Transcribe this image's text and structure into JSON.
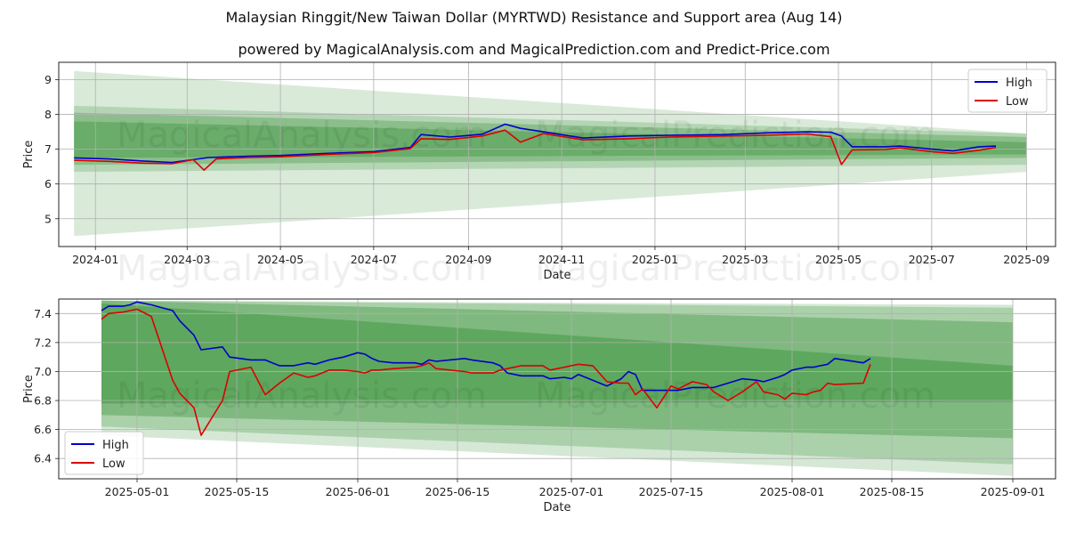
{
  "title": "Malaysian Ringgit/New Taiwan Dollar (MYRTWD) Resistance and Support area (Aug 14)",
  "subtitle": "powered by MagicalAnalysis.com and MagicalPrediction.com and Predict-Price.com",
  "watermarks": [
    "MagicalAnalysis.com",
    "MagicalPrediction.com"
  ],
  "colors": {
    "high": "#0000cc",
    "low": "#dd0000",
    "band": "#2e8b2e"
  },
  "chart_data": [
    {
      "type": "line",
      "xlabel": "Date",
      "ylabel": "Price",
      "xlim": [
        "2023-12-08",
        "2025-09-20"
      ],
      "ylim": [
        4.2,
        9.5
      ],
      "x_ticks": [
        "2024-01",
        "2024-03",
        "2024-05",
        "2024-07",
        "2024-09",
        "2024-11",
        "2025-01",
        "2025-03",
        "2025-05",
        "2025-07",
        "2025-09"
      ],
      "x_tick_dates": [
        "2024-01-01",
        "2024-03-01",
        "2024-05-01",
        "2024-07-01",
        "2024-09-01",
        "2024-11-01",
        "2025-01-01",
        "2025-03-01",
        "2025-05-01",
        "2025-07-01",
        "2025-09-01"
      ],
      "y_ticks": [
        5,
        6,
        7,
        8,
        9
      ],
      "grid": true,
      "legend": "top-right",
      "bands_x": [
        "2023-12-18",
        "2025-09-01"
      ],
      "bands": [
        {
          "upper": [
            9.25,
            7.45
          ],
          "lower": [
            4.5,
            6.35
          ],
          "opacity": 0.18
        },
        {
          "upper": [
            8.25,
            7.45
          ],
          "lower": [
            6.35,
            6.55
          ],
          "opacity": 0.22
        },
        {
          "upper": [
            8.05,
            7.35
          ],
          "lower": [
            6.55,
            6.75
          ],
          "opacity": 0.3
        },
        {
          "upper": [
            7.8,
            7.2
          ],
          "lower": [
            6.75,
            6.85
          ],
          "opacity": 0.35
        }
      ],
      "series": [
        {
          "name": "High",
          "dates": [
            "2023-12-18",
            "2024-01-10",
            "2024-02-01",
            "2024-02-20",
            "2024-03-15",
            "2024-04-10",
            "2024-05-01",
            "2024-06-01",
            "2024-07-01",
            "2024-07-25",
            "2024-08-01",
            "2024-08-20",
            "2024-09-10",
            "2024-09-25",
            "2024-10-05",
            "2024-10-20",
            "2024-11-15",
            "2024-12-15",
            "2025-01-10",
            "2025-02-15",
            "2025-03-15",
            "2025-04-10",
            "2025-04-26",
            "2025-05-03",
            "2025-05-10",
            "2025-06-01",
            "2025-06-10",
            "2025-07-01",
            "2025-07-15",
            "2025-08-01",
            "2025-08-12"
          ],
          "values": [
            6.75,
            6.72,
            6.66,
            6.62,
            6.76,
            6.8,
            6.82,
            6.88,
            6.93,
            7.05,
            7.42,
            7.35,
            7.43,
            7.72,
            7.6,
            7.5,
            7.32,
            7.38,
            7.4,
            7.42,
            7.47,
            7.5,
            7.49,
            7.38,
            7.07,
            7.07,
            7.09,
            7.0,
            6.95,
            7.07,
            7.09
          ]
        },
        {
          "name": "Low",
          "dates": [
            "2023-12-18",
            "2024-01-10",
            "2024-02-01",
            "2024-02-20",
            "2024-03-05",
            "2024-03-12",
            "2024-03-20",
            "2024-04-10",
            "2024-05-01",
            "2024-06-01",
            "2024-07-01",
            "2024-07-25",
            "2024-08-01",
            "2024-08-20",
            "2024-09-10",
            "2024-09-25",
            "2024-10-05",
            "2024-10-20",
            "2024-11-15",
            "2024-12-15",
            "2025-01-10",
            "2025-02-15",
            "2025-03-15",
            "2025-04-10",
            "2025-04-26",
            "2025-05-03",
            "2025-05-10",
            "2025-06-01",
            "2025-06-10",
            "2025-07-01",
            "2025-07-15",
            "2025-08-01",
            "2025-08-12"
          ],
          "values": [
            6.68,
            6.65,
            6.6,
            6.58,
            6.7,
            6.4,
            6.72,
            6.76,
            6.78,
            6.85,
            6.9,
            7.02,
            7.3,
            7.28,
            7.38,
            7.55,
            7.2,
            7.45,
            7.27,
            7.3,
            7.35,
            7.38,
            7.4,
            7.44,
            7.36,
            6.56,
            6.98,
            6.99,
            7.04,
            6.93,
            6.88,
            6.97,
            7.05
          ]
        }
      ]
    },
    {
      "type": "line",
      "xlabel": "Date",
      "ylabel": "Price",
      "xlim": [
        "2025-04-20",
        "2025-09-07"
      ],
      "ylim": [
        6.26,
        7.5
      ],
      "x_ticks": [
        "2025-05-01",
        "2025-05-15",
        "2025-06-01",
        "2025-06-15",
        "2025-07-01",
        "2025-07-15",
        "2025-08-01",
        "2025-08-15",
        "2025-09-01"
      ],
      "y_ticks": [
        6.4,
        6.6,
        6.8,
        7.0,
        7.2,
        7.4
      ],
      "grid": true,
      "legend": "lower-left",
      "bands_x": [
        "2025-04-26",
        "2025-09-01"
      ],
      "bands": [
        {
          "upper": [
            7.49,
            7.46
          ],
          "lower": [
            6.56,
            6.28
          ],
          "opacity": 0.2
        },
        {
          "upper": [
            7.49,
            7.44
          ],
          "lower": [
            6.62,
            6.36
          ],
          "opacity": 0.25
        },
        {
          "upper": [
            7.49,
            7.34
          ],
          "lower": [
            6.7,
            6.54
          ],
          "opacity": 0.35
        },
        {
          "upper": [
            7.47,
            7.04
          ],
          "lower": [
            6.78,
            6.79
          ],
          "opacity": 0.4
        }
      ],
      "series": [
        {
          "name": "High",
          "dates": [
            "2025-04-26",
            "2025-04-27",
            "2025-04-29",
            "2025-04-30",
            "2025-05-01",
            "2025-05-03",
            "2025-05-06",
            "2025-05-07",
            "2025-05-09",
            "2025-05-10",
            "2025-05-13",
            "2025-05-14",
            "2025-05-17",
            "2025-05-19",
            "2025-05-20",
            "2025-05-21",
            "2025-05-23",
            "2025-05-25",
            "2025-05-26",
            "2025-05-28",
            "2025-05-30",
            "2025-06-01",
            "2025-06-02",
            "2025-06-03",
            "2025-06-04",
            "2025-06-06",
            "2025-06-09",
            "2025-06-10",
            "2025-06-11",
            "2025-06-12",
            "2025-06-16",
            "2025-06-17",
            "2025-06-20",
            "2025-06-21",
            "2025-06-22",
            "2025-06-24",
            "2025-06-27",
            "2025-06-28",
            "2025-06-30",
            "2025-07-01",
            "2025-07-02",
            "2025-07-04",
            "2025-07-06",
            "2025-07-08",
            "2025-07-09",
            "2025-07-10",
            "2025-07-11",
            "2025-07-13",
            "2025-07-15",
            "2025-07-16",
            "2025-07-18",
            "2025-07-20",
            "2025-07-21",
            "2025-07-23",
            "2025-07-25",
            "2025-07-27",
            "2025-07-28",
            "2025-07-30",
            "2025-07-31",
            "2025-08-01",
            "2025-08-03",
            "2025-08-04",
            "2025-08-05",
            "2025-08-06",
            "2025-08-07",
            "2025-08-11",
            "2025-08-12"
          ],
          "values": [
            7.42,
            7.45,
            7.45,
            7.46,
            7.48,
            7.46,
            7.42,
            7.35,
            7.25,
            7.15,
            7.17,
            7.1,
            7.08,
            7.08,
            7.06,
            7.04,
            7.04,
            7.06,
            7.05,
            7.08,
            7.1,
            7.13,
            7.12,
            7.09,
            7.07,
            7.06,
            7.06,
            7.05,
            7.08,
            7.07,
            7.09,
            7.08,
            7.06,
            7.04,
            6.99,
            6.97,
            6.97,
            6.95,
            6.96,
            6.95,
            6.98,
            6.94,
            6.9,
            6.95,
            7.0,
            6.98,
            6.87,
            6.87,
            6.87,
            6.87,
            6.89,
            6.89,
            6.89,
            6.92,
            6.95,
            6.94,
            6.93,
            6.96,
            6.98,
            7.01,
            7.03,
            7.03,
            7.04,
            7.05,
            7.09,
            7.06,
            7.09
          ]
        },
        {
          "name": "Low",
          "dates": [
            "2025-04-26",
            "2025-04-27",
            "2025-04-29",
            "2025-04-30",
            "2025-05-01",
            "2025-05-03",
            "2025-05-06",
            "2025-05-07",
            "2025-05-09",
            "2025-05-10",
            "2025-05-13",
            "2025-05-14",
            "2025-05-17",
            "2025-05-19",
            "2025-05-20",
            "2025-05-21",
            "2025-05-23",
            "2025-05-25",
            "2025-05-26",
            "2025-05-28",
            "2025-05-30",
            "2025-06-01",
            "2025-06-02",
            "2025-06-03",
            "2025-06-04",
            "2025-06-06",
            "2025-06-09",
            "2025-06-10",
            "2025-06-11",
            "2025-06-12",
            "2025-06-16",
            "2025-06-17",
            "2025-06-20",
            "2025-06-21",
            "2025-06-22",
            "2025-06-24",
            "2025-06-27",
            "2025-06-28",
            "2025-06-30",
            "2025-07-01",
            "2025-07-02",
            "2025-07-04",
            "2025-07-06",
            "2025-07-08",
            "2025-07-09",
            "2025-07-10",
            "2025-07-11",
            "2025-07-13",
            "2025-07-15",
            "2025-07-16",
            "2025-07-18",
            "2025-07-20",
            "2025-07-21",
            "2025-07-23",
            "2025-07-25",
            "2025-07-27",
            "2025-07-28",
            "2025-07-30",
            "2025-07-31",
            "2025-08-01",
            "2025-08-03",
            "2025-08-04",
            "2025-08-05",
            "2025-08-06",
            "2025-08-07",
            "2025-08-11",
            "2025-08-12"
          ],
          "values": [
            7.36,
            7.4,
            7.41,
            7.42,
            7.43,
            7.38,
            6.94,
            6.85,
            6.75,
            6.56,
            6.8,
            7.0,
            7.03,
            6.84,
            6.88,
            6.92,
            6.99,
            6.96,
            6.97,
            7.01,
            7.01,
            7.0,
            6.99,
            7.01,
            7.01,
            7.02,
            7.03,
            7.04,
            7.06,
            7.02,
            7.0,
            6.99,
            6.99,
            7.01,
            7.02,
            7.04,
            7.04,
            7.01,
            7.03,
            7.04,
            7.05,
            7.04,
            6.93,
            6.92,
            6.92,
            6.84,
            6.88,
            6.75,
            6.9,
            6.88,
            6.93,
            6.91,
            6.86,
            6.8,
            6.86,
            6.93,
            6.86,
            6.84,
            6.81,
            6.85,
            6.84,
            6.86,
            6.87,
            6.92,
            6.91,
            6.92,
            7.05
          ]
        }
      ]
    }
  ]
}
